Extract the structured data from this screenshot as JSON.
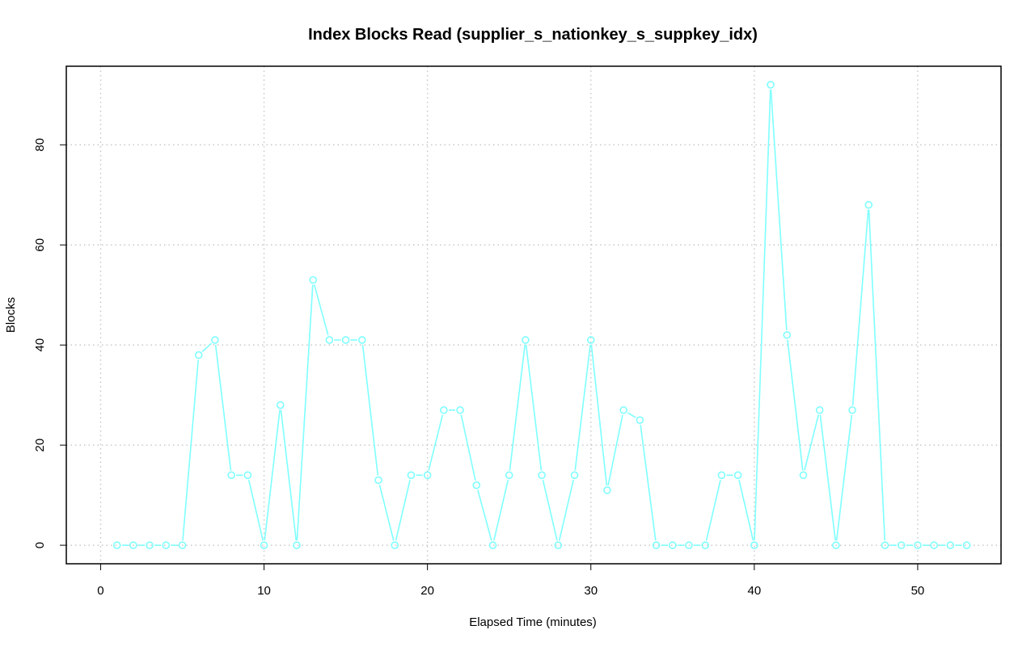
{
  "chart_data": {
    "type": "line",
    "title": "Index Blocks Read (supplier_s_nationkey_s_suppkey_idx)",
    "xlabel": "Elapsed Time (minutes)",
    "ylabel": "Blocks",
    "xlim": [
      -2.1,
      55.1
    ],
    "ylim": [
      -3.7,
      95.7
    ],
    "x_ticks": [
      0,
      10,
      20,
      30,
      40,
      50
    ],
    "y_ticks": [
      0,
      20,
      40,
      60,
      80
    ],
    "grid": true,
    "line_color": "#7fffff",
    "series": [
      {
        "x": [
          1,
          2,
          3,
          4,
          5,
          6,
          7,
          8,
          9,
          10,
          11,
          12,
          13,
          14,
          15,
          16,
          17,
          18,
          19,
          20,
          21,
          22,
          23,
          24,
          25,
          26,
          27,
          28,
          29,
          30,
          31,
          32,
          33,
          34,
          35,
          36,
          37,
          38,
          39,
          40,
          41,
          42,
          43,
          44,
          45,
          46,
          47,
          48,
          49,
          50,
          51,
          52,
          53
        ],
        "values": [
          0,
          0,
          0,
          0,
          0,
          38,
          41,
          14,
          14,
          0,
          28,
          0,
          53,
          41,
          41,
          41,
          13,
          0,
          14,
          14,
          27,
          27,
          12,
          0,
          14,
          41,
          14,
          0,
          14,
          41,
          11,
          27,
          25,
          0,
          0,
          0,
          0,
          14,
          14,
          0,
          92,
          42,
          14,
          27,
          0,
          27,
          68,
          0,
          0,
          0,
          0,
          0,
          0
        ]
      }
    ]
  }
}
